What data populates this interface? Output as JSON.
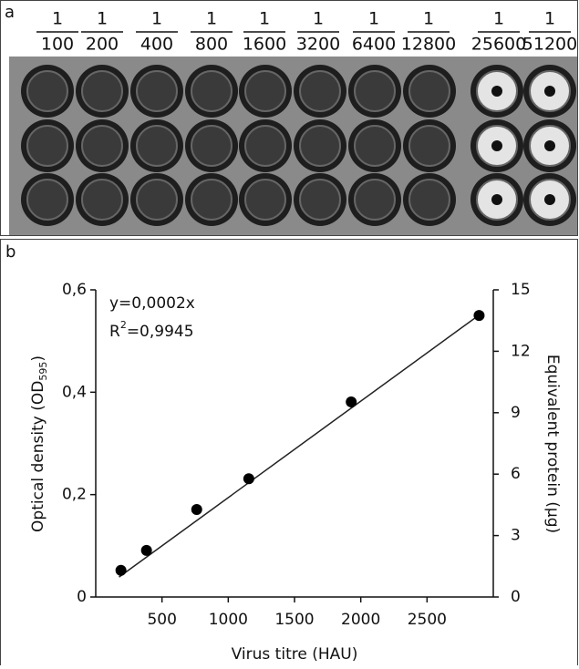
{
  "panel_a": {
    "label": "a",
    "dilutions": [
      {
        "numerator": "1",
        "denominator": "100"
      },
      {
        "numerator": "1",
        "denominator": "200"
      },
      {
        "numerator": "1",
        "denominator": "400"
      },
      {
        "numerator": "1",
        "denominator": "800"
      },
      {
        "numerator": "1",
        "denominator": "1600"
      },
      {
        "numerator": "1",
        "denominator": "3200"
      },
      {
        "numerator": "1",
        "denominator": "6400"
      },
      {
        "numerator": "1",
        "denominator": "12800"
      },
      {
        "numerator": "1",
        "denominator": "25600"
      },
      {
        "numerator": "1",
        "denominator": "51200"
      }
    ]
  },
  "chart_data": {
    "type": "scatter",
    "panel_label": "b",
    "xlabel": "Virus titre (HAU)",
    "ylabel": {
      "text": "Optical density (OD",
      "sub": "595",
      "end": ")"
    },
    "y2label": "Equivalent protein (µg)",
    "equation": "y=0,0002x",
    "r2": {
      "text": "R",
      "sup": "2",
      "end": "=0,9945"
    },
    "x": [
      190,
      383,
      762,
      1155,
      1928,
      2893
    ],
    "values": [
      0.052,
      0.091,
      0.171,
      0.231,
      0.381,
      0.55
    ],
    "color": "#000000",
    "trendline": {
      "x": [
        176,
        2910
      ],
      "y": [
        0.039,
        0.554
      ],
      "color": "#222222"
    },
    "xlim": [
      0,
      3000
    ],
    "xticks": [
      500,
      1000,
      1500,
      2000,
      2500
    ],
    "ylim": [
      0,
      0.6
    ],
    "yticks": [
      0,
      {
        "value": 0.2,
        "label": "0,2"
      },
      {
        "value": 0.4,
        "label": "0,4"
      },
      {
        "value": 0.6,
        "label": "0,6"
      }
    ],
    "y2lim": [
      0,
      15
    ],
    "y2ticks": [
      0,
      3,
      6,
      9,
      12,
      15
    ]
  }
}
